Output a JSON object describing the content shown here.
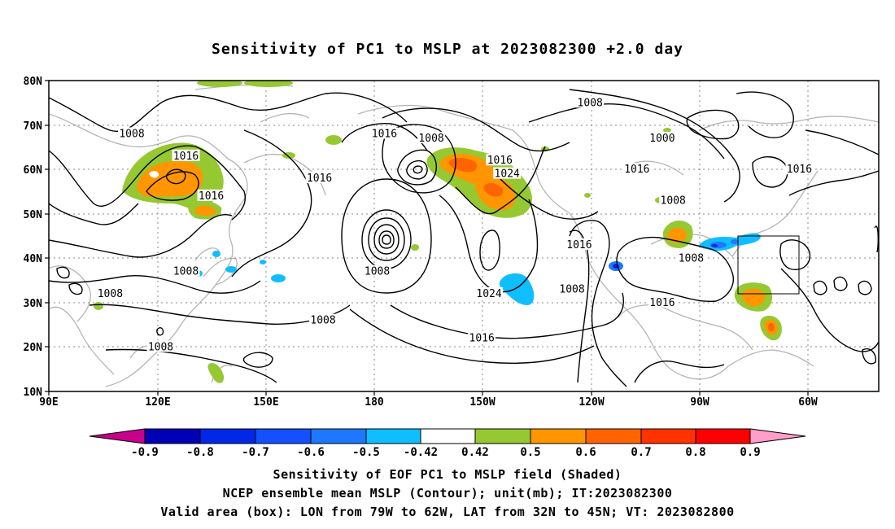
{
  "title": "Sensitivity of PC1 to MSLP at 2023082300 +2.0 day",
  "lat_labels": [
    "80N",
    "70N",
    "60N",
    "50N",
    "40N",
    "30N",
    "20N",
    "10N"
  ],
  "lon_labels": [
    "90E",
    "120E",
    "150E",
    "180",
    "150W",
    "120W",
    "90W",
    "60W"
  ],
  "contour_labels": [
    {
      "text": "1008",
      "lon": 113,
      "lat": 68
    },
    {
      "text": "1016",
      "lon": 128,
      "lat": 63
    },
    {
      "text": "1016",
      "lon": 135,
      "lat": 54
    },
    {
      "text": "1016",
      "lon": 165,
      "lat": 58
    },
    {
      "text": "1016",
      "lon": 183,
      "lat": 68
    },
    {
      "text": "1008",
      "lon": 196,
      "lat": 67
    },
    {
      "text": "1016",
      "lon": 215,
      "lat": 62
    },
    {
      "text": "1024",
      "lon": 217,
      "lat": 59
    },
    {
      "text": "1008",
      "lon": 240,
      "lat": 75
    },
    {
      "text": "1000",
      "lon": 260,
      "lat": 67
    },
    {
      "text": "1016",
      "lon": 253,
      "lat": 60
    },
    {
      "text": "1008",
      "lon": 263,
      "lat": 53
    },
    {
      "text": "1016",
      "lon": 298,
      "lat": 60
    },
    {
      "text": "1016",
      "lon": 237,
      "lat": 43
    },
    {
      "text": "1008",
      "lon": 268,
      "lat": 40
    },
    {
      "text": "1008",
      "lon": 235,
      "lat": 33
    },
    {
      "text": "1016",
      "lon": 260,
      "lat": 30
    },
    {
      "text": "1024",
      "lon": 212,
      "lat": 32
    },
    {
      "text": "1016",
      "lon": 210,
      "lat": 22
    },
    {
      "text": "1008",
      "lon": 181,
      "lat": 37
    },
    {
      "text": "1008",
      "lon": 166,
      "lat": 26
    },
    {
      "text": "1008",
      "lon": 128,
      "lat": 37
    },
    {
      "text": "1008",
      "lon": 107,
      "lat": 32
    },
    {
      "text": "1008",
      "lon": 121,
      "lat": 20
    }
  ],
  "colorbar": {
    "labels": [
      "-0.9",
      "-0.8",
      "-0.7",
      "-0.6",
      "-0.5",
      "-0.42",
      "0.42",
      "0.5",
      "0.6",
      "0.7",
      "0.8",
      "0.9"
    ],
    "colors": [
      "#c8008c",
      "#0000b4",
      "#0028e6",
      "#1450ff",
      "#1e78ff",
      "#0fbeff",
      "#ffffff",
      "#96c832",
      "#ff9600",
      "#ff6400",
      "#ff3200",
      "#ff0000",
      "#ff9ec8"
    ]
  },
  "captions": [
    "Sensitivity of EOF PC1 to MSLP field (Shaded)",
    "NCEP ensemble mean MSLP (Contour); unit(mb); IT:2023082300",
    "Valid area (box): LON from 79W to 62W, LAT from 32N to 45N; VT: 2023082800"
  ],
  "valid_box": {
    "lon_west": -79,
    "lon_east": -62,
    "lat_south": 32,
    "lat_north": 45
  }
}
